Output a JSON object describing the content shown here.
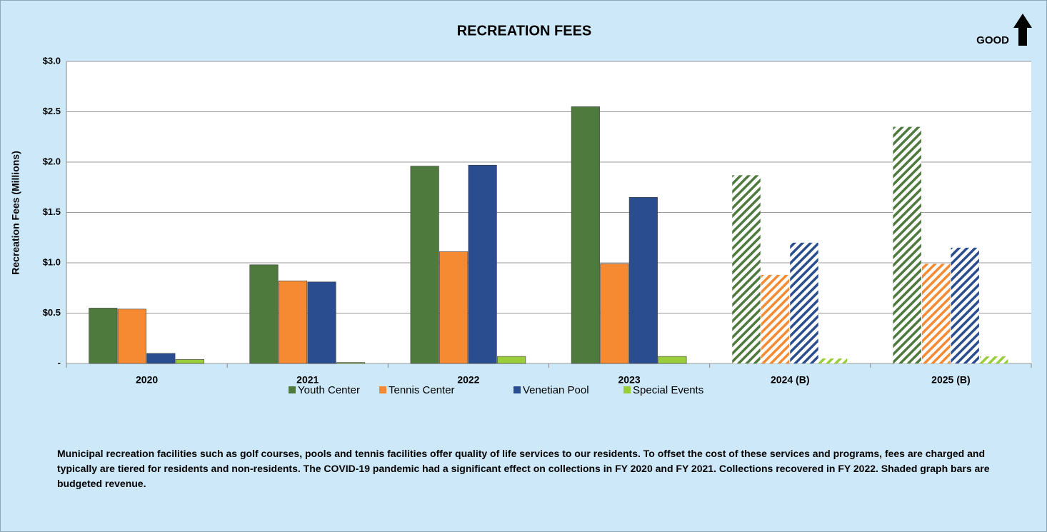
{
  "chart_data": {
    "type": "bar",
    "title": "RECREATION FEES",
    "annotation": "GOOD",
    "y_label": "Recreation Fees (Millions)",
    "categories": [
      "2020",
      "2021",
      "2022",
      "2023",
      "2024 (B)",
      "2025 (B)"
    ],
    "hatched": [
      false,
      false,
      false,
      false,
      true,
      true
    ],
    "series": [
      {
        "name": "Youth Center",
        "color": "#4e7a3e",
        "values": [
          0.55,
          0.98,
          1.96,
          2.55,
          1.87,
          2.35
        ]
      },
      {
        "name": "Tennis Center",
        "color": "#f58a33",
        "values": [
          0.54,
          0.82,
          1.11,
          0.99,
          0.88,
          0.99
        ]
      },
      {
        "name": "Venetian Pool",
        "color": "#2a4d8f",
        "values": [
          0.1,
          0.81,
          1.97,
          1.65,
          1.2,
          1.15
        ]
      },
      {
        "name": "Special Events",
        "color": "#9acd3a",
        "values": [
          0.04,
          0.01,
          0.07,
          0.07,
          0.05,
          0.07
        ]
      }
    ],
    "ylim": [
      0,
      3
    ],
    "yticks": [
      {
        "value": 0,
        "label": "-"
      },
      {
        "value": 0.5,
        "label": "$0.5"
      },
      {
        "value": 1,
        "label": "$1.0"
      },
      {
        "value": 1.5,
        "label": "$1.5"
      },
      {
        "value": 2,
        "label": "$2.0"
      },
      {
        "value": 2.5,
        "label": "$2.5"
      },
      {
        "value": 3,
        "label": "$3.0"
      }
    ],
    "grid": true,
    "legend": "bottom",
    "note": "Municipal recreation facilities such as  golf courses, pools and tennis facilities offer quality of life services to our residents.  To offset the cost of these services and programs, fees are charged and typically are tiered for residents and non-residents. The COVID-19 pandemic had a significant effect on collections in FY 2020 and FY 2021.  Collections recovered in FY 2022.  Shaded graph bars are budgeted revenue."
  }
}
